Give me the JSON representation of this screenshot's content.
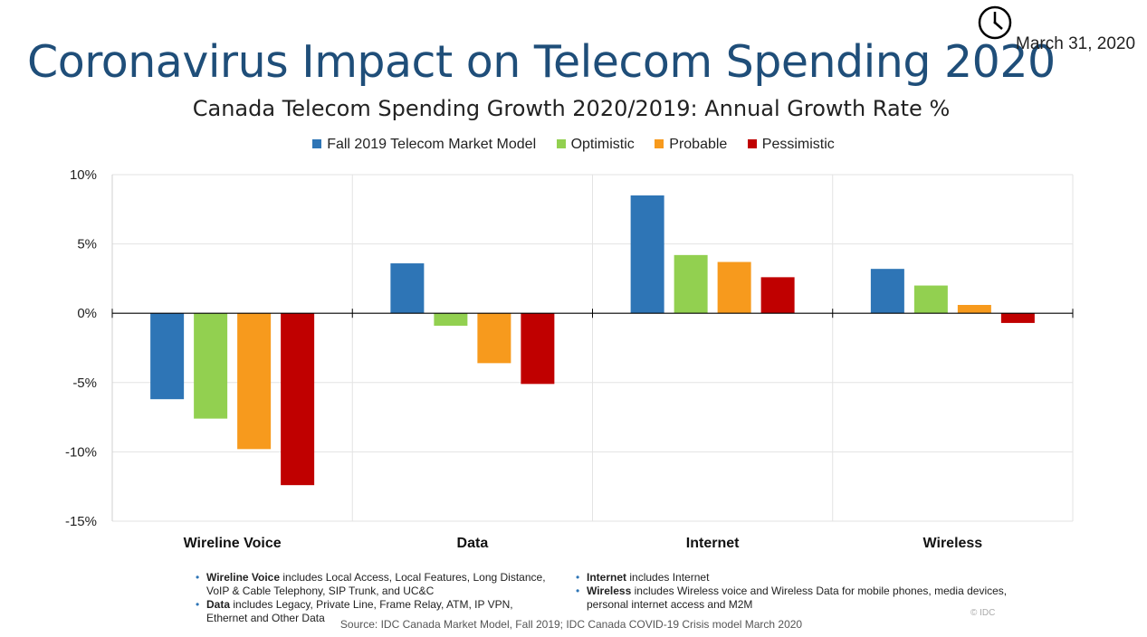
{
  "header": {
    "title": "Coronavirus Impact on Telecom Spending 2020",
    "date": "March 31, 2020",
    "clock_icon": "clock-icon"
  },
  "chart_data": {
    "type": "bar",
    "title": "Canada Telecom Spending Growth 2020/2019: Annual Growth Rate %",
    "xlabel": "",
    "ylabel": "",
    "categories": [
      "Wireline Voice",
      "Data",
      "Internet",
      "Wireless"
    ],
    "series": [
      {
        "name": "Fall 2019 Telecom Market Model",
        "color": "#2e75b6",
        "values": [
          -6.2,
          3.6,
          8.5,
          3.2
        ]
      },
      {
        "name": "Optimistic",
        "color": "#92d050",
        "values": [
          -7.6,
          -0.9,
          4.2,
          2.0
        ]
      },
      {
        "name": "Probable",
        "color": "#f79a1d",
        "values": [
          -9.8,
          -3.6,
          3.7,
          0.6
        ]
      },
      {
        "name": "Pessimistic",
        "color": "#c00000",
        "values": [
          -12.4,
          -5.1,
          2.6,
          -0.7
        ]
      }
    ],
    "ylim": [
      -15,
      10
    ],
    "yticks": [
      10,
      5,
      0,
      -5,
      -10,
      -15
    ],
    "ytick_labels": [
      "10%",
      "5%",
      "0%",
      "-5%",
      "-10%",
      "-15%"
    ],
    "grid": true,
    "legend": "top-center"
  },
  "notes": {
    "left": [
      {
        "term": "Wireline Voice",
        "text": " includes Local Access, Local Features, Long Distance, VoIP & Cable Telephony, SIP Trunk, and UC&C"
      },
      {
        "term": "Data",
        "text": " includes Legacy, Private Line, Frame Relay, ATM, IP VPN, Ethernet and Other Data"
      }
    ],
    "right": [
      {
        "term": "Internet",
        "text": " includes Internet"
      },
      {
        "term": "Wireless",
        "text": " includes Wireless voice and Wireless Data for mobile phones, media devices, personal internet access and M2M"
      }
    ]
  },
  "footer": {
    "source": "Source: IDC Canada Market Model, Fall 2019; IDC Canada COVID-19 Crisis model March 2020",
    "copyright": "© IDC"
  }
}
